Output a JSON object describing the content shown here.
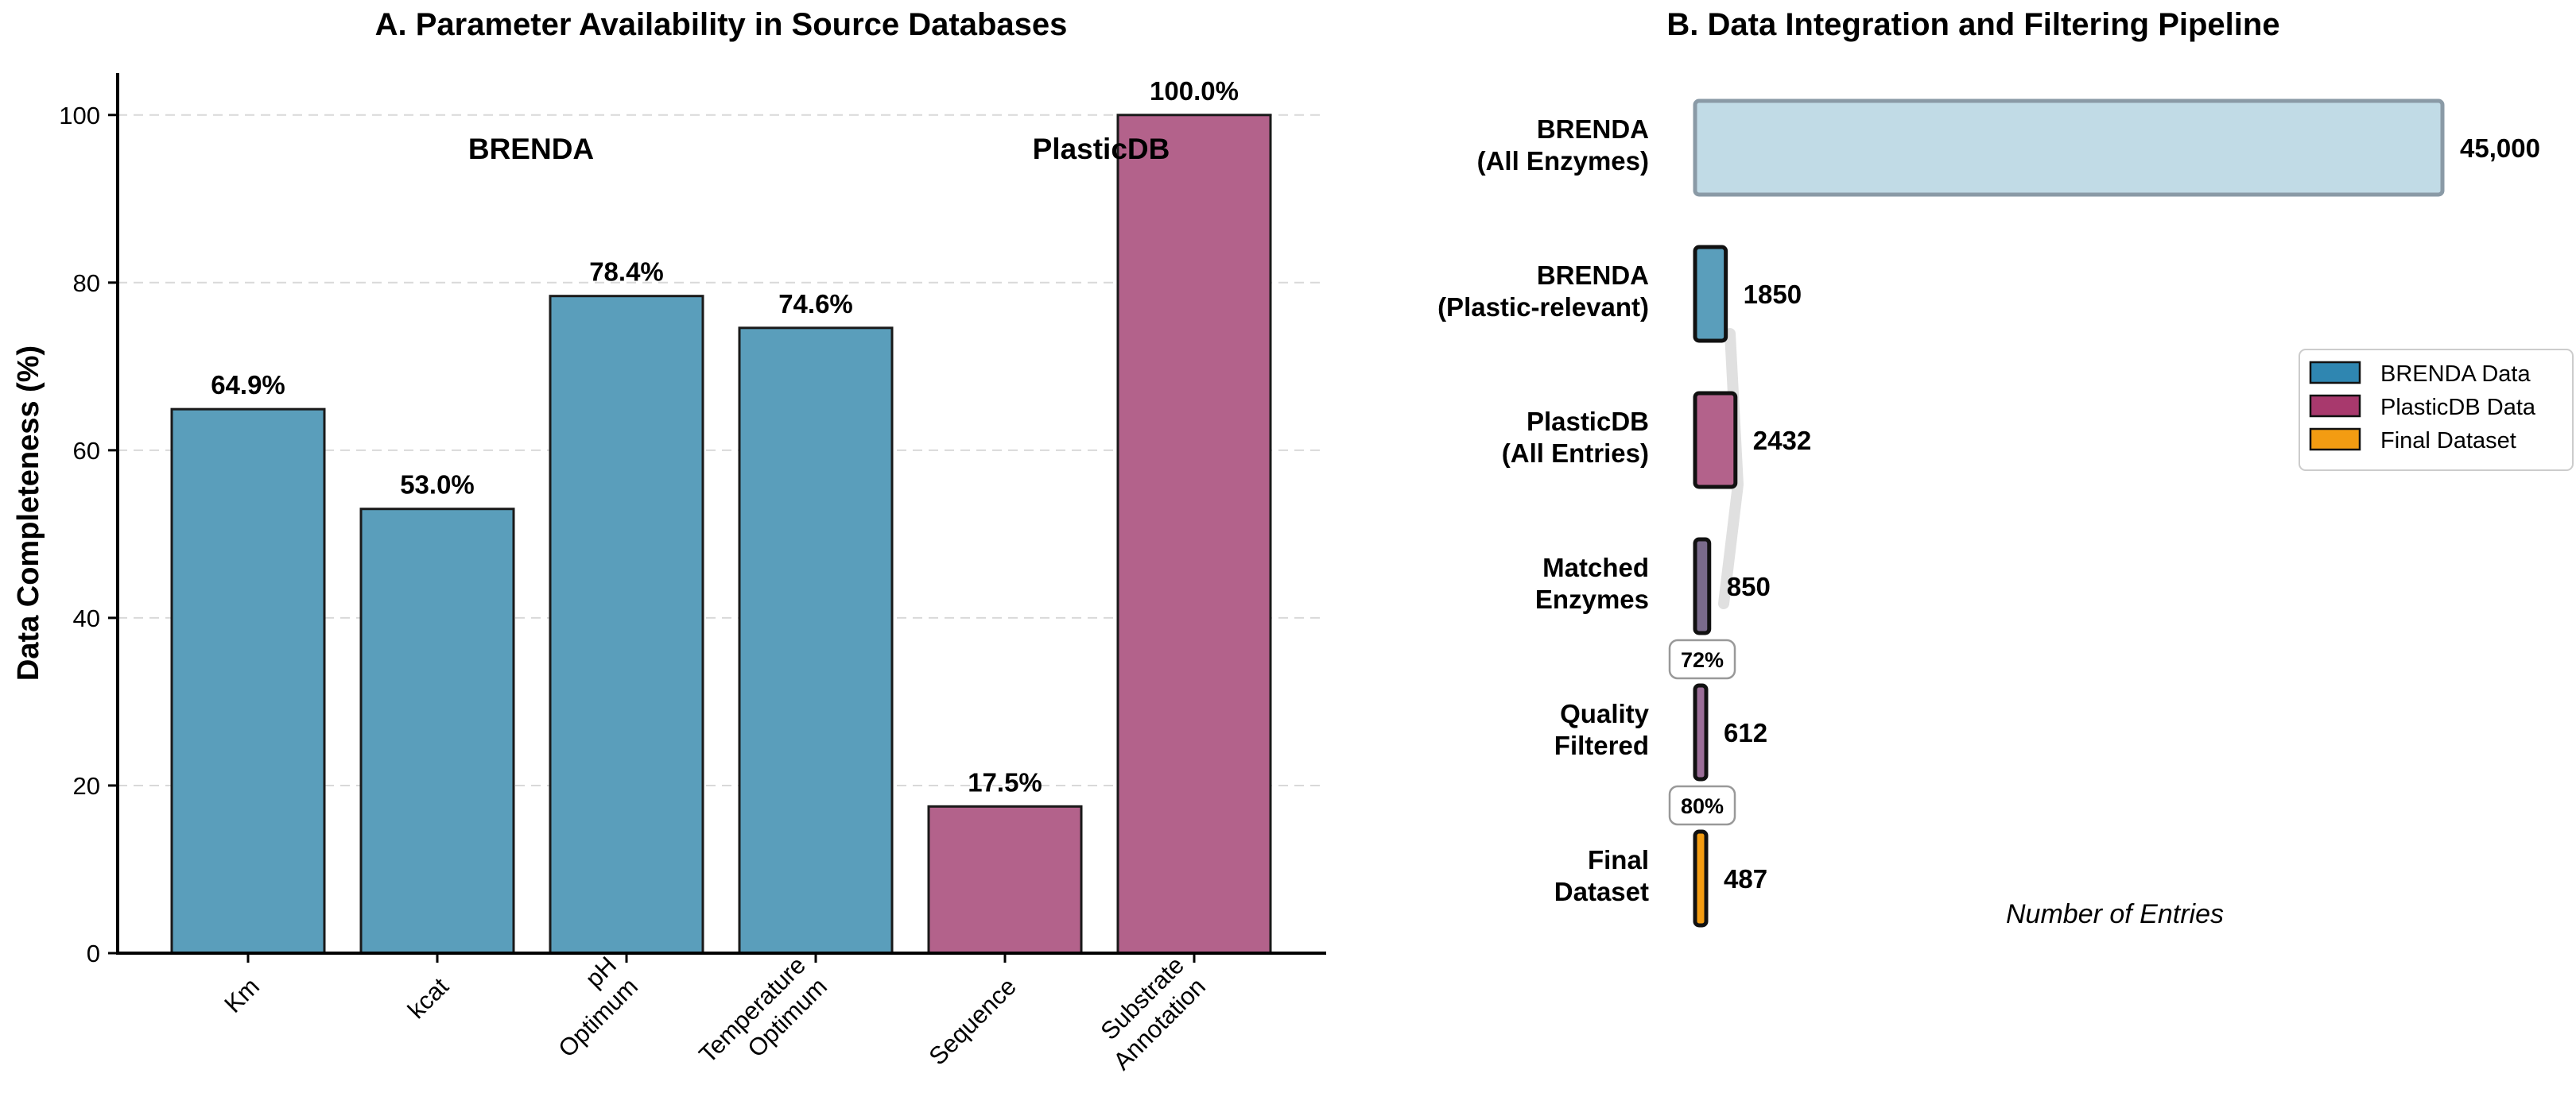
{
  "colors": {
    "brenda": "#5a9ebb",
    "plasticdb": "#b3628b",
    "brenda_label": "#2f86b1",
    "plasticdb_label": "#a8396d",
    "brenda_all": "#c1dbe6",
    "matched": "#7a6b8c",
    "quality": "#9b6e98",
    "final": "#f39c12"
  },
  "chart_data": [
    {
      "type": "bar",
      "title": "A. Parameter Availability in Source Databases",
      "xlabel": "",
      "ylabel": "Data Completeness (%)",
      "ylim": [
        0,
        105
      ],
      "yticks": [
        "0",
        "20",
        "40",
        "60",
        "80",
        "100"
      ],
      "ytick_values": [
        0,
        20,
        40,
        60,
        80,
        100
      ],
      "grid": "horizontal dashed",
      "categories": [
        "Km",
        "kcat",
        "pH\nOptimum",
        "Temperature\nOptimum",
        "Sequence",
        "Substrate\nAnnotation"
      ],
      "values": [
        64.9,
        53.0,
        78.4,
        74.6,
        17.5,
        100.0
      ],
      "value_labels": [
        "64.9%",
        "53.0%",
        "78.4%",
        "74.6%",
        "17.5%",
        "100.0%"
      ],
      "source": [
        "BRENDA",
        "BRENDA",
        "BRENDA",
        "BRENDA",
        "PlasticDB",
        "PlasticDB"
      ],
      "group_labels": [
        "BRENDA",
        "PlasticDB"
      ]
    },
    {
      "type": "bar",
      "orientation": "horizontal",
      "title": "B. Data Integration and Filtering Pipeline",
      "xlabel": "Number of Entries",
      "stages": [
        {
          "label": [
            "BRENDA",
            "(All Enzymes)"
          ],
          "value": 45000,
          "value_label": "45,000",
          "color_key": "brenda_all"
        },
        {
          "label": [
            "BRENDA",
            "(Plastic-relevant)"
          ],
          "value": 1850,
          "value_label": "1850",
          "color_key": "brenda"
        },
        {
          "label": [
            "PlasticDB",
            "(All Entries)"
          ],
          "value": 2432,
          "value_label": "2432",
          "color_key": "plasticdb"
        },
        {
          "label": [
            "Matched",
            "Enzymes"
          ],
          "value": 850,
          "value_label": "850",
          "color_key": "matched"
        },
        {
          "label": [
            "Quality",
            "Filtered"
          ],
          "value": 612,
          "value_label": "612",
          "color_key": "quality"
        },
        {
          "label": [
            "Final",
            "Dataset"
          ],
          "value": 487,
          "value_label": "487",
          "color_key": "final"
        }
      ],
      "retention_labels": [
        "72%",
        "80%"
      ],
      "legend": {
        "placement": "right",
        "entries": [
          {
            "label": "BRENDA Data",
            "color_key": "brenda_label"
          },
          {
            "label": "PlasticDB Data",
            "color_key": "plasticdb_label"
          },
          {
            "label": "Final Dataset",
            "color_key": "final"
          }
        ]
      }
    }
  ]
}
